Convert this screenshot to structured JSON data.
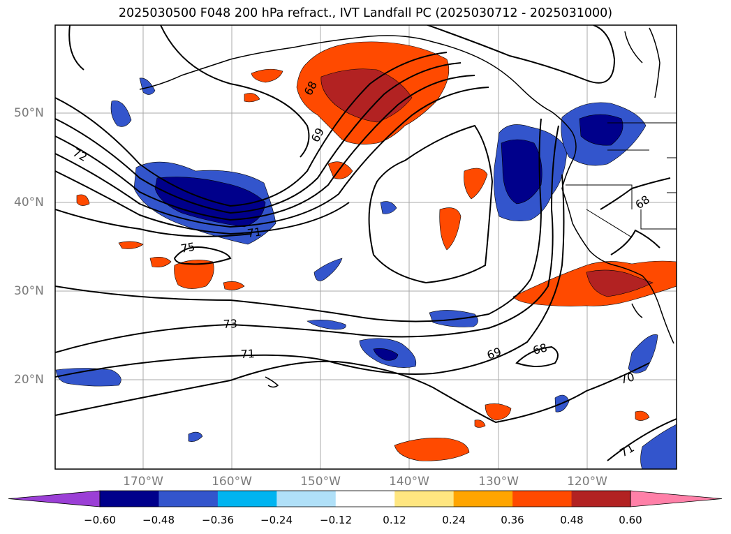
{
  "title": "2025030500 F048 200 hPa refract., IVT Landfall PC (2025030712 - 2025031000)",
  "lat_labels": [
    "50°N",
    "40°N",
    "30°N",
    "20°N"
  ],
  "lon_labels": [
    "170°W",
    "160°W",
    "150°W",
    "140°W",
    "130°W",
    "120°W"
  ],
  "contour_labels": [
    "72",
    "68",
    "69",
    "75",
    "71",
    "73",
    "71",
    "69",
    "68",
    "70",
    "71",
    "68"
  ],
  "colorbar": {
    "ticks": [
      "−0.60",
      "−0.48",
      "−0.36",
      "−0.24",
      "−0.12",
      "0.12",
      "0.24",
      "0.36",
      "0.48",
      "0.60"
    ],
    "colors": [
      "#9b3fd6",
      "#00008b",
      "#3355cc",
      "#00b4f0",
      "#b0e0f8",
      "#ffffff",
      "#ffe680",
      "#ffa500",
      "#ff4a00",
      "#b22222",
      "#ff80a8"
    ]
  }
}
